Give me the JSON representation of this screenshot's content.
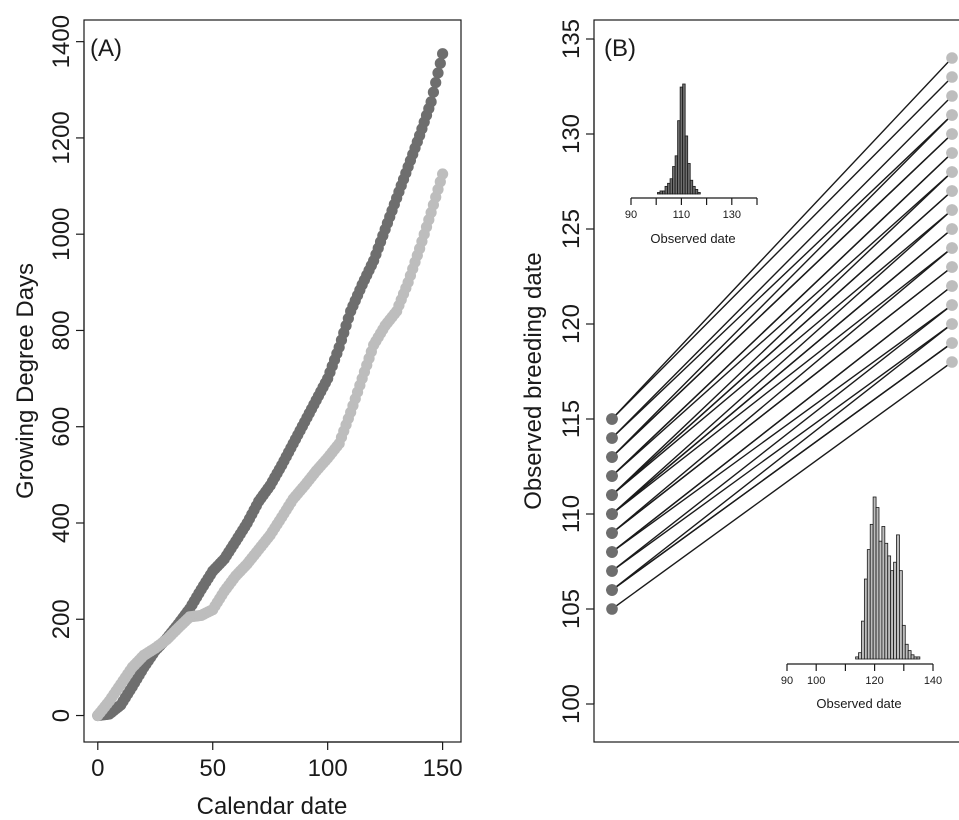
{
  "chart_data": [
    {
      "type": "scatter",
      "panel_label": "(A)",
      "xlabel": "Calendar date",
      "ylabel": "Growing Degree Days",
      "xlim": [
        -6,
        158
      ],
      "ylim": [
        -55,
        1445
      ],
      "x_ticks": [
        0,
        50,
        100,
        150
      ],
      "y_ticks": [
        0,
        200,
        400,
        600,
        800,
        1000,
        1200,
        1400
      ],
      "grid": false,
      "series": [
        {
          "color": "#6e6e6e",
          "points": [
            [
              0,
              0
            ],
            [
              5,
              3
            ],
            [
              10,
              22
            ],
            [
              15,
              60
            ],
            [
              20,
              100
            ],
            [
              25,
              135
            ],
            [
              30,
              160
            ],
            [
              35,
              190
            ],
            [
              40,
              222
            ],
            [
              45,
              262
            ],
            [
              50,
              300
            ],
            [
              55,
              325
            ],
            [
              60,
              362
            ],
            [
              65,
              400
            ],
            [
              70,
              445
            ],
            [
              75,
              478
            ],
            [
              80,
              520
            ],
            [
              85,
              565
            ],
            [
              90,
              610
            ],
            [
              95,
              655
            ],
            [
              100,
              700
            ],
            [
              105,
              765
            ],
            [
              110,
              840
            ],
            [
              115,
              895
            ],
            [
              120,
              945
            ],
            [
              125,
              1010
            ],
            [
              130,
              1075
            ],
            [
              135,
              1140
            ],
            [
              140,
              1205
            ],
            [
              145,
              1275
            ],
            [
              150,
              1375
            ]
          ]
        },
        {
          "color": "#bdbdbd",
          "points": [
            [
              0,
              0
            ],
            [
              5,
              30
            ],
            [
              10,
              65
            ],
            [
              15,
              100
            ],
            [
              20,
              125
            ],
            [
              25,
              140
            ],
            [
              30,
              158
            ],
            [
              35,
              182
            ],
            [
              40,
              205
            ],
            [
              45,
              208
            ],
            [
              50,
              220
            ],
            [
              55,
              258
            ],
            [
              60,
              290
            ],
            [
              65,
              315
            ],
            [
              70,
              345
            ],
            [
              75,
              375
            ],
            [
              80,
              412
            ],
            [
              85,
              450
            ],
            [
              90,
              478
            ],
            [
              95,
              508
            ],
            [
              100,
              535
            ],
            [
              105,
              565
            ],
            [
              110,
              630
            ],
            [
              115,
              700
            ],
            [
              120,
              770
            ],
            [
              125,
              810
            ],
            [
              130,
              840
            ],
            [
              135,
              900
            ],
            [
              140,
              970
            ],
            [
              145,
              1045
            ],
            [
              150,
              1125
            ]
          ]
        }
      ]
    },
    {
      "type": "line",
      "panel_label": "(B)",
      "ylabel": "Observed breeding date",
      "ylim": [
        98,
        136
      ],
      "y_ticks": [
        100,
        105,
        110,
        115,
        120,
        125,
        130,
        135
      ],
      "grid": false,
      "left_color": "#6e6e6e",
      "right_color": "#bdbdbd",
      "pairs": [
        [
          105,
          118
        ],
        [
          106,
          119
        ],
        [
          106,
          119
        ],
        [
          106,
          120
        ],
        [
          107,
          120
        ],
        [
          107,
          121
        ],
        [
          108,
          121
        ],
        [
          108,
          122
        ],
        [
          108,
          122
        ],
        [
          109,
          123
        ],
        [
          109,
          123
        ],
        [
          109,
          124
        ],
        [
          110,
          124
        ],
        [
          110,
          125
        ],
        [
          110,
          125
        ],
        [
          110,
          126
        ],
        [
          111,
          126
        ],
        [
          111,
          127
        ],
        [
          111,
          127
        ],
        [
          111,
          128
        ],
        [
          112,
          128
        ],
        [
          112,
          129
        ],
        [
          112,
          129
        ],
        [
          113,
          130
        ],
        [
          113,
          130
        ],
        [
          113,
          131
        ],
        [
          114,
          131
        ],
        [
          114,
          132
        ],
        [
          115,
          133
        ],
        [
          115,
          134
        ]
      ],
      "insets": [
        {
          "position": "upper-left",
          "xlabel": "Observed date",
          "xlim": [
            90,
            140
          ],
          "x_ticks": [
            90,
            110,
            130
          ],
          "color": "#6e6e6e",
          "bins": [
            [
              101,
              1
            ],
            [
              102,
              2
            ],
            [
              103,
              2
            ],
            [
              104,
              5
            ],
            [
              105,
              7
            ],
            [
              106,
              10
            ],
            [
              107,
              18
            ],
            [
              108,
              25
            ],
            [
              109,
              48
            ],
            [
              110,
              70
            ],
            [
              111,
              72
            ],
            [
              112,
              38
            ],
            [
              113,
              20
            ],
            [
              114,
              9
            ],
            [
              115,
              5
            ],
            [
              116,
              3
            ],
            [
              117,
              1
            ]
          ]
        },
        {
          "position": "lower-right",
          "xlabel": "Observed date",
          "xlim": [
            90,
            140
          ],
          "x_ticks": [
            90,
            100,
            120,
            140
          ],
          "color": "#bdbdbd",
          "bins": [
            [
              114,
              1
            ],
            [
              115,
              3
            ],
            [
              116,
              18
            ],
            [
              117,
              38
            ],
            [
              118,
              52
            ],
            [
              119,
              64
            ],
            [
              120,
              77
            ],
            [
              121,
              72
            ],
            [
              122,
              56
            ],
            [
              123,
              63
            ],
            [
              124,
              55
            ],
            [
              125,
              49
            ],
            [
              126,
              42
            ],
            [
              127,
              46
            ],
            [
              128,
              59
            ],
            [
              129,
              42
            ],
            [
              130,
              16
            ],
            [
              131,
              7
            ],
            [
              132,
              4
            ],
            [
              133,
              2
            ],
            [
              134,
              1
            ],
            [
              135,
              1
            ]
          ]
        }
      ]
    }
  ]
}
